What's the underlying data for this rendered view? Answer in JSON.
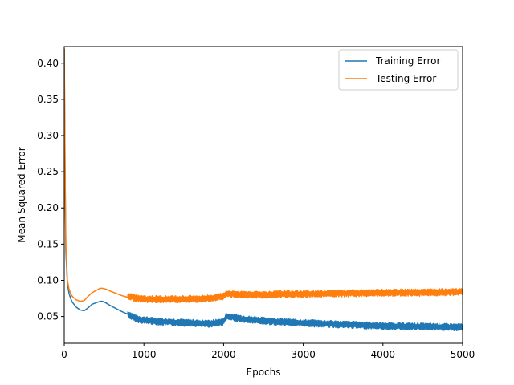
{
  "chart_data": {
    "type": "line",
    "title": "",
    "xlabel": "Epochs",
    "ylabel": "Mean Squared Error",
    "xlim": [
      0,
      5000
    ],
    "ylim": [
      0.013,
      0.423
    ],
    "xticks": [
      0,
      1000,
      2000,
      3000,
      4000,
      5000
    ],
    "xtick_labels": [
      "0",
      "1000",
      "2000",
      "3000",
      "4000",
      "5000"
    ],
    "yticks": [
      0.05,
      0.1,
      0.15,
      0.2,
      0.25,
      0.3,
      0.35,
      0.4
    ],
    "ytick_labels": [
      "0.05",
      "0.10",
      "0.15",
      "0.20",
      "0.25",
      "0.30",
      "0.35",
      "0.40"
    ],
    "grid": false,
    "legend_position": "top-right",
    "series": [
      {
        "name": "Training Error",
        "color": "#1f77b4",
        "x": [
          0,
          10,
          20,
          40,
          60,
          80,
          100,
          150,
          200,
          250,
          300,
          350,
          400,
          450,
          480,
          520,
          580,
          650,
          720,
          780,
          800,
          820,
          900,
          1000,
          1200,
          1400,
          1600,
          1800,
          1900,
          2000,
          2030,
          2100,
          2300,
          2500,
          2800,
          3000,
          3500,
          4000,
          4500,
          5000
        ],
        "y": [
          0.42,
          0.25,
          0.14,
          0.095,
          0.082,
          0.075,
          0.07,
          0.063,
          0.059,
          0.058,
          0.062,
          0.067,
          0.069,
          0.071,
          0.071,
          0.069,
          0.065,
          0.061,
          0.057,
          0.054,
          0.053,
          0.052,
          0.047,
          0.045,
          0.043,
          0.042,
          0.041,
          0.04,
          0.041,
          0.043,
          0.05,
          0.049,
          0.046,
          0.044,
          0.042,
          0.041,
          0.039,
          0.037,
          0.036,
          0.035
        ],
        "noise_from_x": 800,
        "noise_amplitude": 0.0035
      },
      {
        "name": "Testing Error",
        "color": "#ff7f0e",
        "x": [
          0,
          10,
          20,
          40,
          60,
          80,
          100,
          150,
          200,
          250,
          300,
          350,
          400,
          450,
          480,
          520,
          580,
          650,
          720,
          780,
          800,
          820,
          900,
          1000,
          1200,
          1400,
          1600,
          1800,
          1900,
          2000,
          2030,
          2100,
          2300,
          2500,
          2800,
          3000,
          3500,
          4000,
          4500,
          5000
        ],
        "y": [
          0.42,
          0.26,
          0.15,
          0.1,
          0.088,
          0.082,
          0.078,
          0.073,
          0.071,
          0.072,
          0.078,
          0.083,
          0.086,
          0.089,
          0.089,
          0.088,
          0.085,
          0.082,
          0.079,
          0.077,
          0.076,
          0.078,
          0.075,
          0.074,
          0.074,
          0.074,
          0.074,
          0.075,
          0.076,
          0.078,
          0.082,
          0.081,
          0.08,
          0.08,
          0.081,
          0.081,
          0.082,
          0.083,
          0.083,
          0.084
        ],
        "noise_from_x": 800,
        "noise_amplitude": 0.0035
      }
    ]
  }
}
